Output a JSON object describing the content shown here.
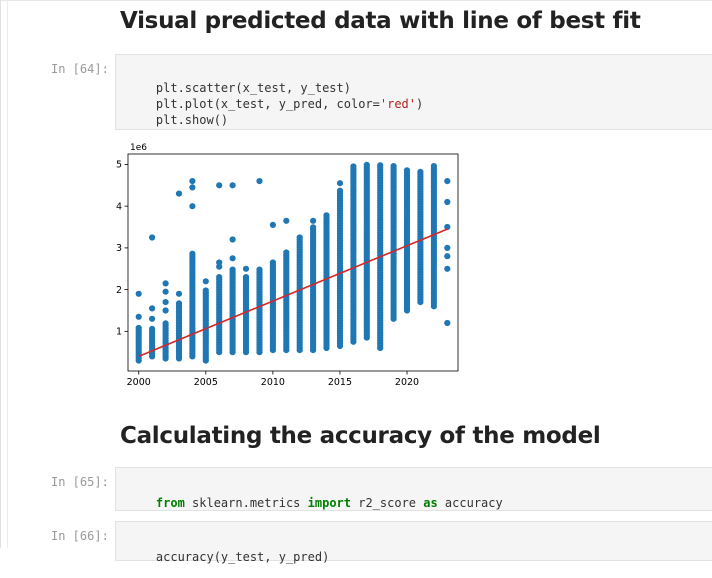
{
  "notebook": {
    "heading1": "Visual predicted data with line of best fit",
    "heading2": "Calculating the accuracy of the model",
    "cells": [
      {
        "prompt": "In [64]:",
        "lines": [
          {
            "segments": [
              {
                "text": "plt.scatter(x_test, y_test)",
                "type": "plain"
              }
            ]
          },
          {
            "segments": [
              {
                "text": "plt.plot(x_test, y_pred, color=",
                "type": "plain"
              },
              {
                "text": "'red'",
                "type": "string"
              },
              {
                "text": ")",
                "type": "plain"
              }
            ]
          },
          {
            "segments": [
              {
                "text": "plt.show()",
                "type": "plain"
              }
            ]
          }
        ]
      },
      {
        "prompt": "In [65]:",
        "lines": [
          {
            "segments": [
              {
                "text": "from",
                "type": "keyword"
              },
              {
                "text": " sklearn.metrics ",
                "type": "plain"
              },
              {
                "text": "import",
                "type": "keyword"
              },
              {
                "text": " r2_score ",
                "type": "plain"
              },
              {
                "text": "as",
                "type": "keyword"
              },
              {
                "text": " accuracy",
                "type": "plain"
              }
            ]
          }
        ]
      },
      {
        "prompt": "In [66]:",
        "lines": [
          {
            "segments": [
              {
                "text": "accuracy(y_test, y_pred)",
                "type": "plain"
              }
            ]
          }
        ]
      }
    ]
  },
  "chart_data": {
    "type": "scatter",
    "offset_label": "1e6",
    "xlim": [
      1999.2,
      2023.8
    ],
    "ylim": [
      0.05,
      5.25
    ],
    "x_ticks": [
      2000,
      2005,
      2010,
      2015,
      2020
    ],
    "y_ticks": [
      1,
      2,
      3,
      4,
      5
    ],
    "x_tick_labels": [
      "2000",
      "2005",
      "2010",
      "2015",
      "2020"
    ],
    "y_tick_labels": [
      "1",
      "2",
      "3",
      "4",
      "5"
    ],
    "scatter_color": "#1f77b4",
    "line_color": "#d62728",
    "scatter_columns": [
      {
        "x": 2000,
        "min": 0.3,
        "max": 1.1,
        "extra": [
          1.35,
          1.9
        ]
      },
      {
        "x": 2001,
        "min": 0.4,
        "max": 1.1,
        "extra": [
          1.3,
          1.55,
          3.25
        ]
      },
      {
        "x": 2002,
        "min": 0.35,
        "max": 1.2,
        "extra": [
          1.5,
          1.7,
          1.95,
          2.15
        ]
      },
      {
        "x": 2003,
        "min": 0.35,
        "max": 1.7,
        "extra": [
          1.9,
          4.3
        ]
      },
      {
        "x": 2004,
        "min": 0.4,
        "max": 2.9,
        "extra": [
          4.0,
          4.45,
          4.6
        ]
      },
      {
        "x": 2005,
        "min": 0.3,
        "max": 2.0,
        "extra": [
          2.2
        ]
      },
      {
        "x": 2006,
        "min": 0.5,
        "max": 2.3,
        "extra": [
          2.55,
          2.65,
          4.5
        ]
      },
      {
        "x": 2007,
        "min": 0.5,
        "max": 2.5,
        "extra": [
          2.75,
          3.2,
          4.5
        ]
      },
      {
        "x": 2008,
        "min": 0.5,
        "max": 2.3,
        "extra": [
          2.5
        ]
      },
      {
        "x": 2009,
        "min": 0.5,
        "max": 2.5,
        "extra": [
          4.6
        ]
      },
      {
        "x": 2010,
        "min": 0.55,
        "max": 2.7,
        "extra": [
          3.55
        ]
      },
      {
        "x": 2011,
        "min": 0.55,
        "max": 2.9,
        "extra": [
          3.65
        ]
      },
      {
        "x": 2012,
        "min": 0.55,
        "max": 3.3,
        "extra": []
      },
      {
        "x": 2013,
        "min": 0.55,
        "max": 3.5,
        "extra": [
          3.65
        ]
      },
      {
        "x": 2014,
        "min": 0.6,
        "max": 3.8,
        "extra": []
      },
      {
        "x": 2015,
        "min": 0.65,
        "max": 4.4,
        "extra": [
          4.55
        ]
      },
      {
        "x": 2016,
        "min": 0.75,
        "max": 5.0,
        "extra": []
      },
      {
        "x": 2017,
        "min": 0.85,
        "max": 5.0,
        "extra": []
      },
      {
        "x": 2018,
        "min": 0.6,
        "max": 5.0,
        "extra": []
      },
      {
        "x": 2019,
        "min": 1.3,
        "max": 5.0,
        "extra": []
      },
      {
        "x": 2020,
        "min": 1.5,
        "max": 4.9,
        "extra": []
      },
      {
        "x": 2021,
        "min": 1.7,
        "max": 4.85,
        "extra": []
      },
      {
        "x": 2022,
        "min": 1.6,
        "max": 5.0,
        "extra": []
      },
      {
        "x": 2023,
        "min": 1.2,
        "max": 1.2,
        "extra": [
          2.5,
          2.8,
          3.0,
          3.5,
          4.1,
          4.6
        ]
      }
    ],
    "line": {
      "x": [
        2000,
        2023
      ],
      "y": [
        0.4,
        3.45
      ]
    }
  }
}
